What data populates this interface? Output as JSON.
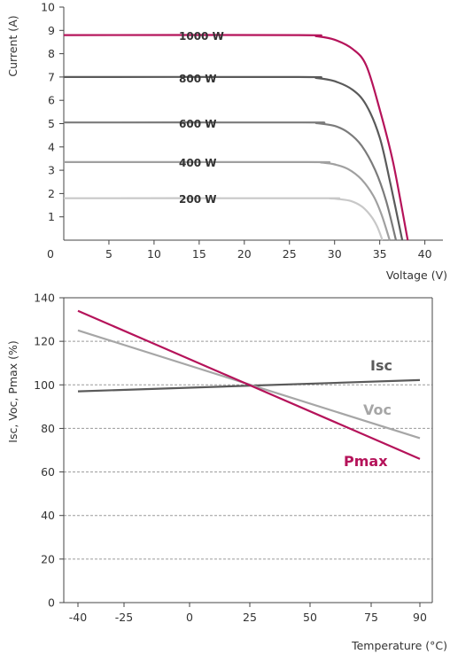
{
  "chart_data": [
    {
      "type": "line",
      "title": "",
      "xlabel": "Voltage (V)",
      "ylabel": "Current (A)",
      "xlim": [
        0,
        42
      ],
      "ylim": [
        0,
        10
      ],
      "x_ticks": [
        "0",
        "5",
        "10",
        "15",
        "20",
        "25",
        "30",
        "35",
        "40"
      ],
      "y_ticks": [
        "1",
        "2",
        "3",
        "4",
        "5",
        "6",
        "7",
        "8",
        "9",
        "10"
      ],
      "grid": false,
      "series": [
        {
          "name": "1000 W",
          "color": "#b5135a",
          "x": [
            0,
            26,
            28,
            30,
            32,
            33.5,
            35,
            36.5,
            38.1
          ],
          "y": [
            8.8,
            8.8,
            8.75,
            8.6,
            8.2,
            7.5,
            5.6,
            3.3,
            0
          ]
        },
        {
          "name": "800 W",
          "color": "#5a5a5a",
          "x": [
            0,
            26,
            28,
            30,
            32,
            33.5,
            35,
            36.2,
            37.5
          ],
          "y": [
            7.0,
            7.0,
            6.96,
            6.82,
            6.45,
            5.8,
            4.4,
            2.4,
            0
          ]
        },
        {
          "name": "600 W",
          "color": "#7b7b7b",
          "x": [
            0,
            26.5,
            28,
            30,
            31.5,
            33,
            34.5,
            35.7,
            36.8
          ],
          "y": [
            5.05,
            5.05,
            5.02,
            4.9,
            4.62,
            4.05,
            3.0,
            1.7,
            0
          ]
        },
        {
          "name": "400 W",
          "color": "#a0a0a0",
          "x": [
            0,
            27,
            28.5,
            30,
            31.5,
            33,
            34.3,
            35.2,
            36.1
          ],
          "y": [
            3.35,
            3.35,
            3.33,
            3.25,
            3.05,
            2.6,
            1.9,
            1.1,
            0
          ]
        },
        {
          "name": "200 W",
          "color": "#c8c8c8",
          "x": [
            0,
            28,
            29.5,
            30.5,
            31.8,
            33,
            34,
            34.7,
            35.3
          ],
          "y": [
            1.8,
            1.8,
            1.79,
            1.76,
            1.68,
            1.45,
            1.05,
            0.6,
            0
          ]
        }
      ],
      "annotations": [
        "1000 W",
        "800 W",
        "600 W",
        "400 W",
        "200 W"
      ]
    },
    {
      "type": "line",
      "title": "",
      "xlabel": "Temperature (°C)",
      "ylabel": "Isc, Voc, Pmax (%)",
      "xlim": [
        -45,
        95
      ],
      "ylim": [
        0,
        140
      ],
      "x_ticks": [
        "-40",
        "-25",
        "0",
        "25",
        "50",
        "75",
        "90"
      ],
      "y_ticks": [
        "0",
        "20",
        "40",
        "60",
        "80",
        "100",
        "120",
        "140"
      ],
      "grid": true,
      "series": [
        {
          "name": "Isc",
          "color": "#5a5a5a",
          "x": [
            -40,
            90
          ],
          "y": [
            97,
            102.2
          ]
        },
        {
          "name": "Voc",
          "color": "#a6a6a6",
          "x": [
            -40,
            90
          ],
          "y": [
            125,
            75.5
          ]
        },
        {
          "name": "Pmax",
          "color": "#b5135a",
          "x": [
            -40,
            90
          ],
          "y": [
            134,
            66
          ]
        }
      ]
    }
  ]
}
